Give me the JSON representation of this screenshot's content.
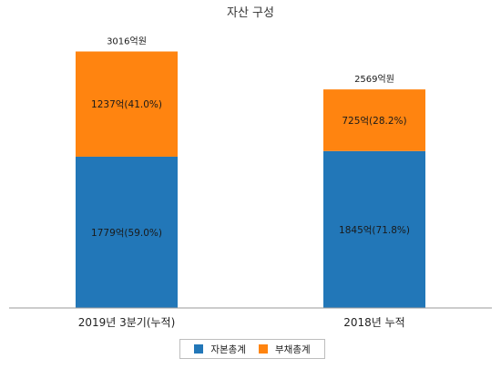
{
  "chart_data": {
    "type": "bar",
    "stacked": true,
    "title": "자산 구성",
    "categories": [
      "2019년 3분기(누적)",
      "2018년 누적"
    ],
    "series": [
      {
        "name": "자본총계",
        "color": "#2277b8",
        "values": [
          1779,
          1845
        ],
        "labels": [
          "1779억(59.0%)",
          "1845억(71.8%)"
        ]
      },
      {
        "name": "부채총계",
        "color": "#ff8410",
        "values": [
          1237,
          725
        ],
        "labels": [
          "1237억(41.0%)",
          "725억(28.2%)"
        ]
      }
    ],
    "totals": [
      3016,
      2569
    ],
    "total_labels": [
      "3016억원",
      "2569억원"
    ],
    "xlabel": "",
    "ylabel": "",
    "ylim": [
      0,
      3300
    ],
    "grid": false,
    "legend_position": "bottom"
  }
}
